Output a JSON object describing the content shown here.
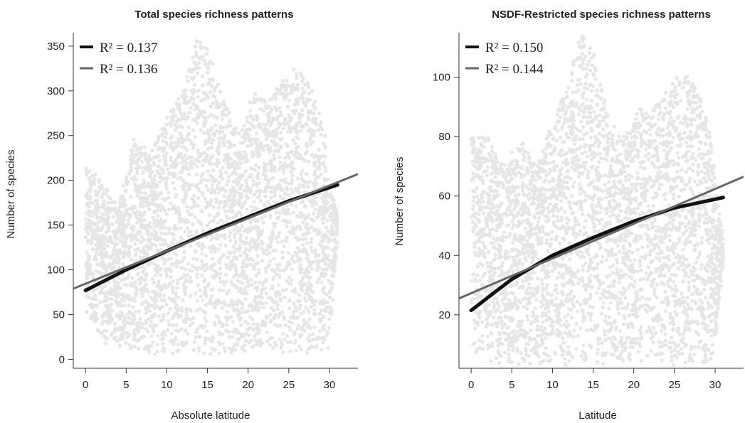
{
  "chart_data": [
    {
      "type": "scatter",
      "title": "Total species richness patterns",
      "xlabel": "Absolute latitude",
      "ylabel": "Number of species",
      "xlim": [
        -1.5,
        33.5
      ],
      "ylim": [
        -10,
        365
      ],
      "xticks": [
        "0",
        "5",
        "10",
        "15",
        "20",
        "25",
        "30"
      ],
      "yticks": [
        "0",
        "50",
        "100",
        "150",
        "200",
        "250",
        "300",
        "350"
      ],
      "legend_position": "top-left",
      "colors": {
        "scatter": "#e6e6e6",
        "curve_black": "#111111",
        "curve_gray": "#666666"
      },
      "scatter_envelope": {
        "x": [
          0,
          2,
          4,
          6,
          8,
          10,
          12,
          13.5,
          15,
          17,
          19,
          20.5,
          22,
          24,
          26,
          28,
          29.5,
          30,
          31
        ],
        "upper": [
          220,
          200,
          170,
          250,
          230,
          270,
          300,
          360,
          350,
          290,
          250,
          300,
          290,
          310,
          330,
          300,
          250,
          200,
          160
        ],
        "lower": [
          50,
          20,
          10,
          8,
          5,
          5,
          8,
          10,
          5,
          5,
          8,
          10,
          15,
          8,
          5,
          5,
          8,
          15,
          130
        ]
      },
      "series": [
        {
          "legend": "R² = 0.137",
          "r2": "0.137",
          "kind": "curve",
          "x": [
            0,
            5,
            10,
            15,
            20,
            25,
            31
          ],
          "y": [
            77,
            100,
            121,
            141,
            159,
            177,
            195
          ]
        },
        {
          "legend": "R² = 0.136",
          "r2": "0.136",
          "kind": "linear",
          "x": [
            -1.5,
            33.5
          ],
          "y": [
            79,
            207
          ]
        }
      ]
    },
    {
      "type": "scatter",
      "title": "NSDF-Restricted species richness patterns",
      "xlabel": "Latitude",
      "ylabel": "Number of species",
      "xlim": [
        -1.5,
        33.5
      ],
      "ylim": [
        2,
        115
      ],
      "xticks": [
        "0",
        "5",
        "10",
        "15",
        "20",
        "25",
        "30"
      ],
      "yticks": [
        "20",
        "40",
        "60",
        "80",
        "100"
      ],
      "legend_position": "top-left",
      "colors": {
        "scatter": "#e6e6e6",
        "curve_black": "#111111",
        "curve_gray": "#666666"
      },
      "scatter_envelope": {
        "x": [
          0,
          2,
          4,
          6,
          8,
          10,
          12,
          13.5,
          15,
          17,
          19,
          20.5,
          22,
          24,
          26,
          28,
          29.5,
          30,
          31
        ],
        "upper": [
          80,
          80,
          70,
          80,
          70,
          85,
          100,
          115,
          110,
          85,
          80,
          90,
          88,
          95,
          103,
          95,
          80,
          65,
          45
        ],
        "lower": [
          8,
          4,
          3,
          3,
          3,
          3,
          3,
          5,
          3,
          3,
          3,
          4,
          5,
          3,
          3,
          3,
          5,
          10,
          38
        ]
      },
      "series": [
        {
          "legend": "R² = 0.150",
          "r2": "0.150",
          "kind": "curve",
          "x": [
            0,
            5,
            10,
            15,
            20,
            25,
            31
          ],
          "y": [
            21.5,
            32,
            40,
            46,
            51.5,
            56,
            59.5
          ]
        },
        {
          "legend": "R² = 0.144",
          "r2": "0.144",
          "kind": "linear",
          "x": [
            -1.5,
            33.5
          ],
          "y": [
            25.5,
            66.5
          ]
        }
      ]
    }
  ]
}
